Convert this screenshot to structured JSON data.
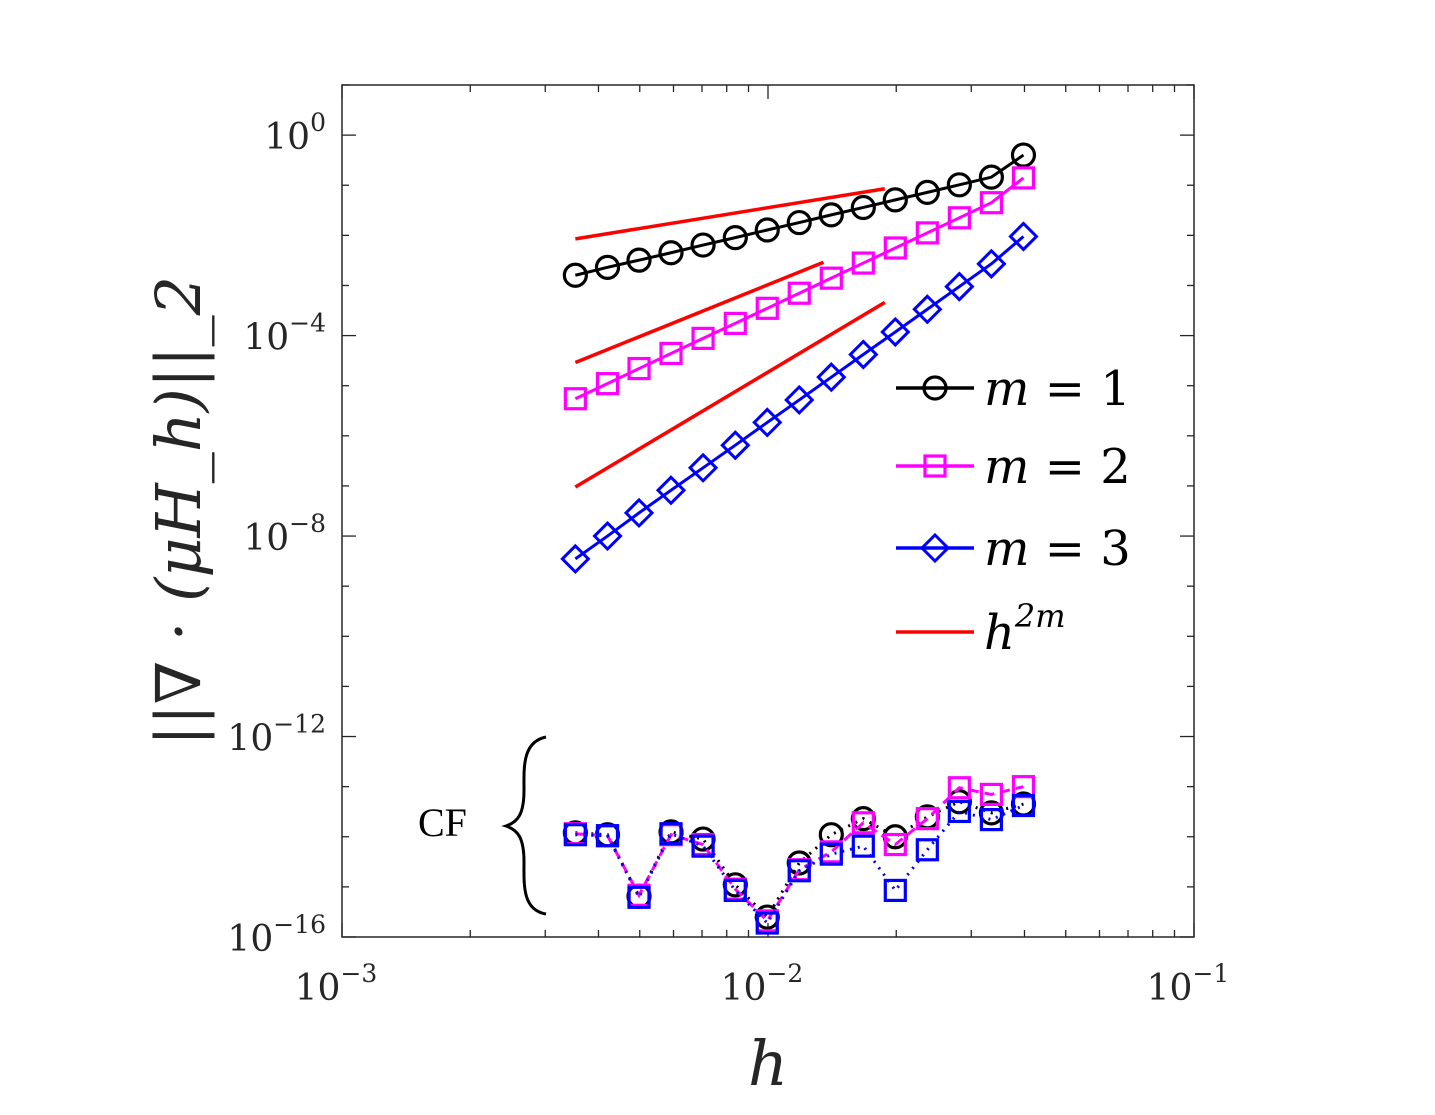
{
  "chart_data": {
    "type": "line",
    "title": "",
    "xlabel": "h",
    "ylabel": "||∇ · (μH_h)||_2",
    "xscale": "log",
    "yscale": "log",
    "xlim": [
      0.001,
      0.1
    ],
    "ylim": [
      1e-16,
      10
    ],
    "grid": false,
    "legend_position": "right-middle",
    "xticks": [
      {
        "base": "10",
        "exp": "−3"
      },
      {
        "base": "10",
        "exp": "−2"
      },
      {
        "base": "10",
        "exp": "−1"
      }
    ],
    "yticks": [
      {
        "base": "10",
        "exp": "0"
      },
      {
        "base": "10",
        "exp": "−4"
      },
      {
        "base": "10",
        "exp": "−8"
      },
      {
        "base": "10",
        "exp": "−12"
      },
      {
        "base": "10",
        "exp": "−16"
      }
    ],
    "x": [
      0.00353,
      0.0042,
      0.00498,
      0.00592,
      0.00704,
      0.00838,
      0.00996,
      0.01184,
      0.01408,
      0.01674,
      0.0199,
      0.02366,
      0.02813,
      0.03345,
      0.03978
    ],
    "series": [
      {
        "name": "m = 1",
        "color": "#000000",
        "marker": "circle",
        "linestyle": "solid",
        "values": [
          0.0016,
          0.0023,
          0.0032,
          0.0045,
          0.0064,
          0.009,
          0.0128,
          0.018,
          0.0256,
          0.036,
          0.051,
          0.072,
          0.102,
          0.145,
          0.4
        ]
      },
      {
        "name": "m = 2",
        "color": "#ff00ff",
        "marker": "square",
        "linestyle": "solid",
        "values": [
          5.5e-06,
          1.1e-05,
          2.2e-05,
          4.4e-05,
          8.8e-05,
          0.000175,
          0.00035,
          0.0007,
          0.0014,
          0.0028,
          0.0056,
          0.0112,
          0.0224,
          0.0448,
          0.14
        ]
      },
      {
        "name": "m = 3",
        "color": "#0000ff",
        "marker": "diamond",
        "linestyle": "solid",
        "values": [
          3.5e-09,
          1e-08,
          2.9e-08,
          8.2e-08,
          2.3e-07,
          6.5e-07,
          1.85e-06,
          5.2e-06,
          1.48e-05,
          4.2e-05,
          0.000118,
          0.000335,
          0.00095,
          0.0027,
          0.0095
        ]
      },
      {
        "name": "h^{2m}",
        "color": "#ff0000",
        "marker": "none",
        "linestyle": "solid",
        "segments": [
          {
            "x": [
              0.00353,
              0.0188
            ],
            "y": [
              0.0085,
              0.085
            ]
          },
          {
            "x": [
              0.00353,
              0.0135
            ],
            "y": [
              2.9e-05,
              0.0029
            ]
          },
          {
            "x": [
              0.00353,
              0.0188
            ],
            "y": [
              9.5e-08,
              0.00046
            ]
          }
        ]
      },
      {
        "name": "CF m = 1",
        "color": "#000000",
        "marker": "circle",
        "linestyle": "dotted",
        "in_legend": false,
        "values": [
          1.2e-14,
          1.1e-14,
          6.5e-16,
          1.25e-14,
          9e-15,
          1.1e-15,
          2.5e-16,
          3e-15,
          1.1e-14,
          2.3e-14,
          1e-14,
          2.5e-14,
          5e-14,
          3e-14,
          4.5e-14
        ]
      },
      {
        "name": "CF m = 2",
        "color": "#ff00ff",
        "marker": "square",
        "linestyle": "dashed",
        "in_legend": false,
        "values": [
          1.15e-14,
          1.05e-14,
          6.8e-16,
          1.1e-14,
          7e-15,
          9e-16,
          2.1e-16,
          2.2e-15,
          5e-15,
          1.9e-14,
          7e-15,
          2.3e-14,
          9.5e-14,
          7e-14,
          1e-13
        ]
      },
      {
        "name": "CF m = 3",
        "color": "#0000ff",
        "marker": "square",
        "linestyle": "dotted",
        "in_legend": false,
        "values": [
          1.1e-14,
          1.05e-14,
          6.2e-16,
          1.15e-14,
          6.5e-15,
          8.5e-16,
          1.9e-16,
          2.1e-15,
          4.5e-15,
          6.5e-15,
          8.5e-16,
          5.5e-15,
          3.2e-14,
          2.2e-14,
          4.2e-14
        ]
      }
    ],
    "legend": [
      {
        "name": "m",
        "eq": " = 1",
        "color": "#000000",
        "marker": "circle"
      },
      {
        "name": "m",
        "eq": " = 2",
        "color": "#ff00ff",
        "marker": "square"
      },
      {
        "name": "m",
        "eq": " = 3",
        "color": "#0000ff",
        "marker": "diamond"
      },
      {
        "name": "h",
        "sup": "2m",
        "color": "#ff0000",
        "marker": "none"
      }
    ],
    "annotations": [
      {
        "text": "CF",
        "target": "series clustered near 10^−14"
      }
    ]
  }
}
